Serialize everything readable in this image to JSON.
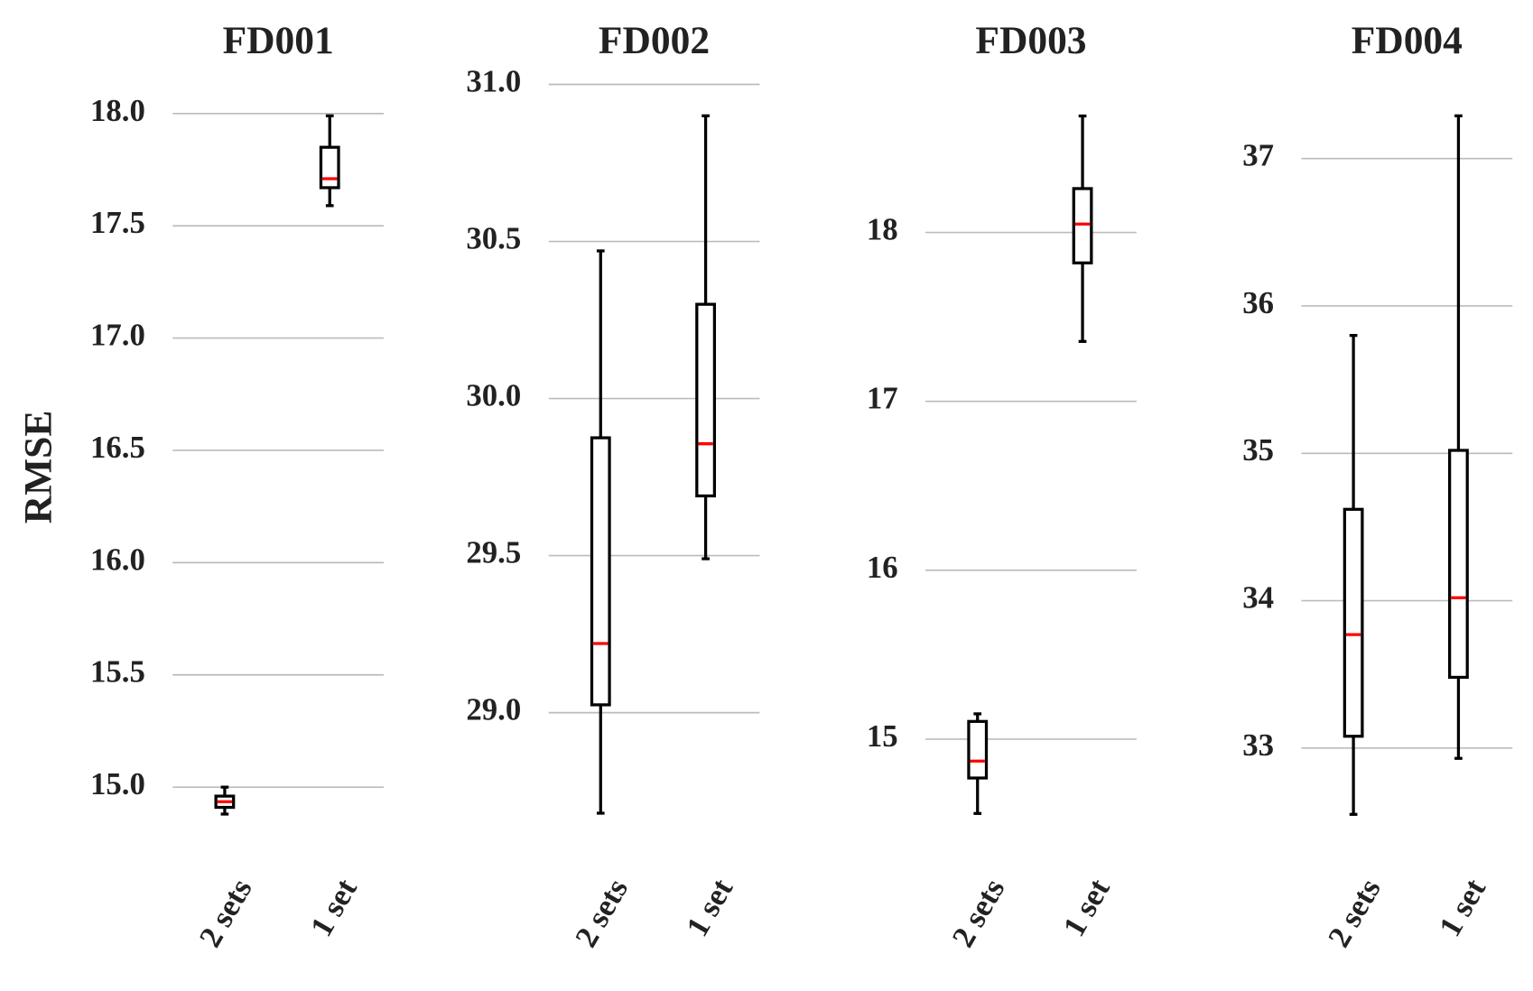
{
  "chart_data": [
    {
      "type": "box",
      "title": "FD001",
      "ylabel": "RMSE",
      "categories": [
        "2 sets",
        "1 set"
      ],
      "boxes": [
        {
          "min": 14.88,
          "q1": 14.91,
          "median": 14.935,
          "q3": 14.96,
          "max": 15.0
        },
        {
          "min": 17.59,
          "q1": 17.67,
          "median": 17.71,
          "q3": 17.85,
          "max": 17.99
        }
      ],
      "color": "#000000",
      "median_color": "#ff0000",
      "grid": true,
      "ylim": [
        14.8,
        18.2
      ],
      "yticks": [
        {
          "value": 15,
          "label": "15.0"
        },
        {
          "value": 15.5,
          "label": "15.5"
        },
        {
          "value": 16,
          "label": "16.0"
        },
        {
          "value": 16.5,
          "label": "16.5"
        },
        {
          "value": 17,
          "label": "17.0"
        },
        {
          "value": 17.5,
          "label": "17.5"
        },
        {
          "value": 18,
          "label": "18.0"
        }
      ]
    },
    {
      "type": "box",
      "title": "FD002",
      "categories": [
        "2 sets",
        "1 set"
      ],
      "boxes": [
        {
          "min": 28.68,
          "q1": 29.025,
          "median": 29.22,
          "q3": 29.875,
          "max": 30.47
        },
        {
          "min": 29.49,
          "q1": 29.69,
          "median": 29.856,
          "q3": 30.3,
          "max": 30.9
        }
      ],
      "color": "#000000",
      "median_color": "#ff0000",
      "grid": true,
      "ylim": [
        28.62,
        31.05
      ],
      "yticks": [
        {
          "value": 29,
          "label": "29.0"
        },
        {
          "value": 29.5,
          "label": "29.5"
        },
        {
          "value": 30,
          "label": "30.0"
        },
        {
          "value": 30.5,
          "label": "30.5"
        },
        {
          "value": 31,
          "label": "31.0"
        }
      ]
    },
    {
      "type": "box",
      "title": "FD003",
      "categories": [
        "2 sets",
        "1 set"
      ],
      "boxes": [
        {
          "min": 14.56,
          "q1": 14.77,
          "median": 14.87,
          "q3": 15.105,
          "max": 15.15
        },
        {
          "min": 17.355,
          "q1": 17.82,
          "median": 18.05,
          "q3": 18.26,
          "max": 18.69
        }
      ],
      "color": "#000000",
      "median_color": "#ff0000",
      "grid": true,
      "ylim": [
        14.45,
        18.97
      ],
      "yticks": [
        15,
        16,
        17,
        18
      ]
    },
    {
      "type": "box",
      "title": "FD004",
      "categories": [
        "2 sets",
        "1 set"
      ],
      "boxes": [
        {
          "min": 32.55,
          "q1": 33.08,
          "median": 33.77,
          "q3": 34.62,
          "max": 35.8
        },
        {
          "min": 32.93,
          "q1": 33.48,
          "median": 34.02,
          "q3": 35.02,
          "max": 37.29
        }
      ],
      "color": "#000000",
      "median_color": "#ff0000",
      "grid": true,
      "ylim": [
        32.43,
        37.61
      ],
      "yticks": [
        33,
        34,
        35,
        36,
        37
      ]
    }
  ]
}
